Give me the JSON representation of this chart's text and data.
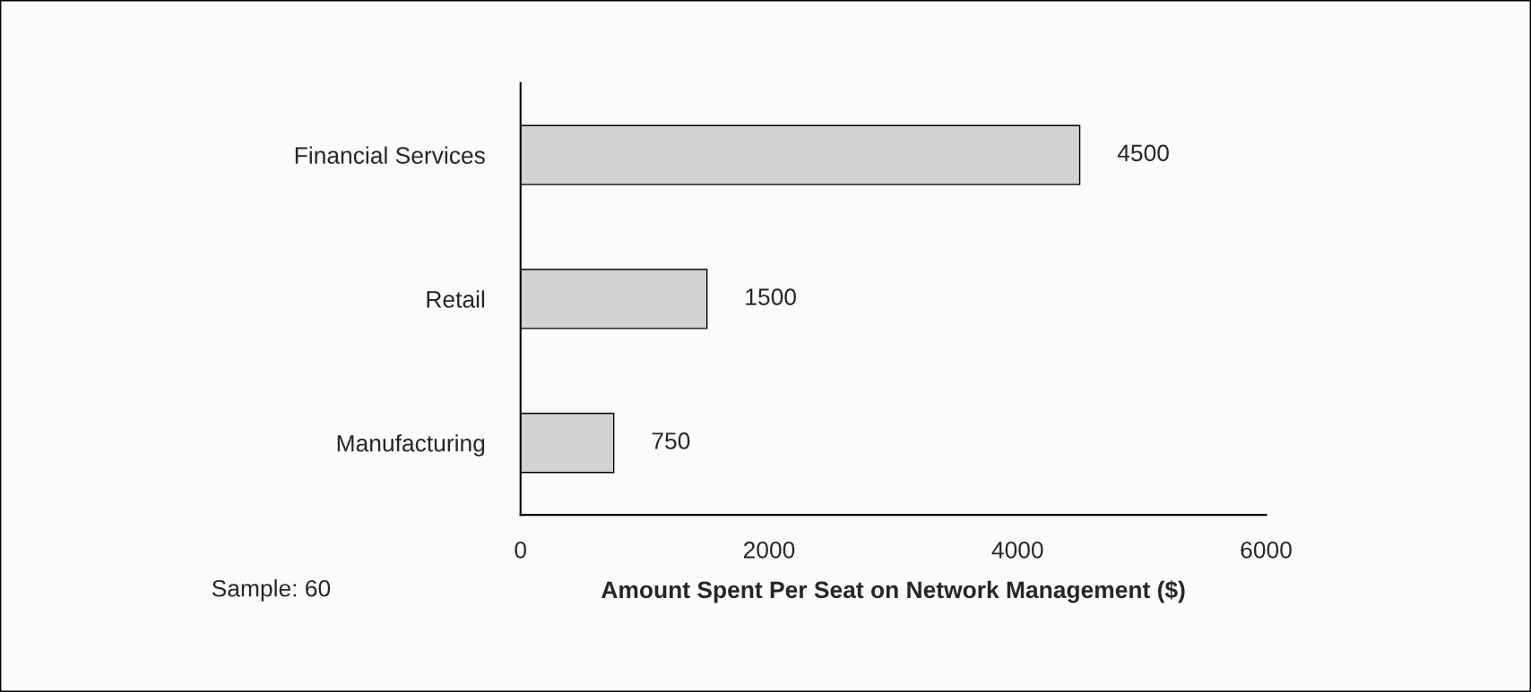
{
  "chart_data": {
    "type": "bar",
    "orientation": "horizontal",
    "categories": [
      "Financial Services",
      "Retail",
      "Manufacturing"
    ],
    "values": [
      4500,
      1500,
      750
    ],
    "color": "#d3d3d3",
    "xlim": [
      0,
      6000
    ],
    "xticks": [
      0,
      2000,
      4000,
      6000
    ],
    "xlabel": "Amount Spent Per Seat on Network Management ($)",
    "annotations": [
      "Sample: 60"
    ],
    "data_labels": true,
    "grid": false,
    "legend": false
  }
}
